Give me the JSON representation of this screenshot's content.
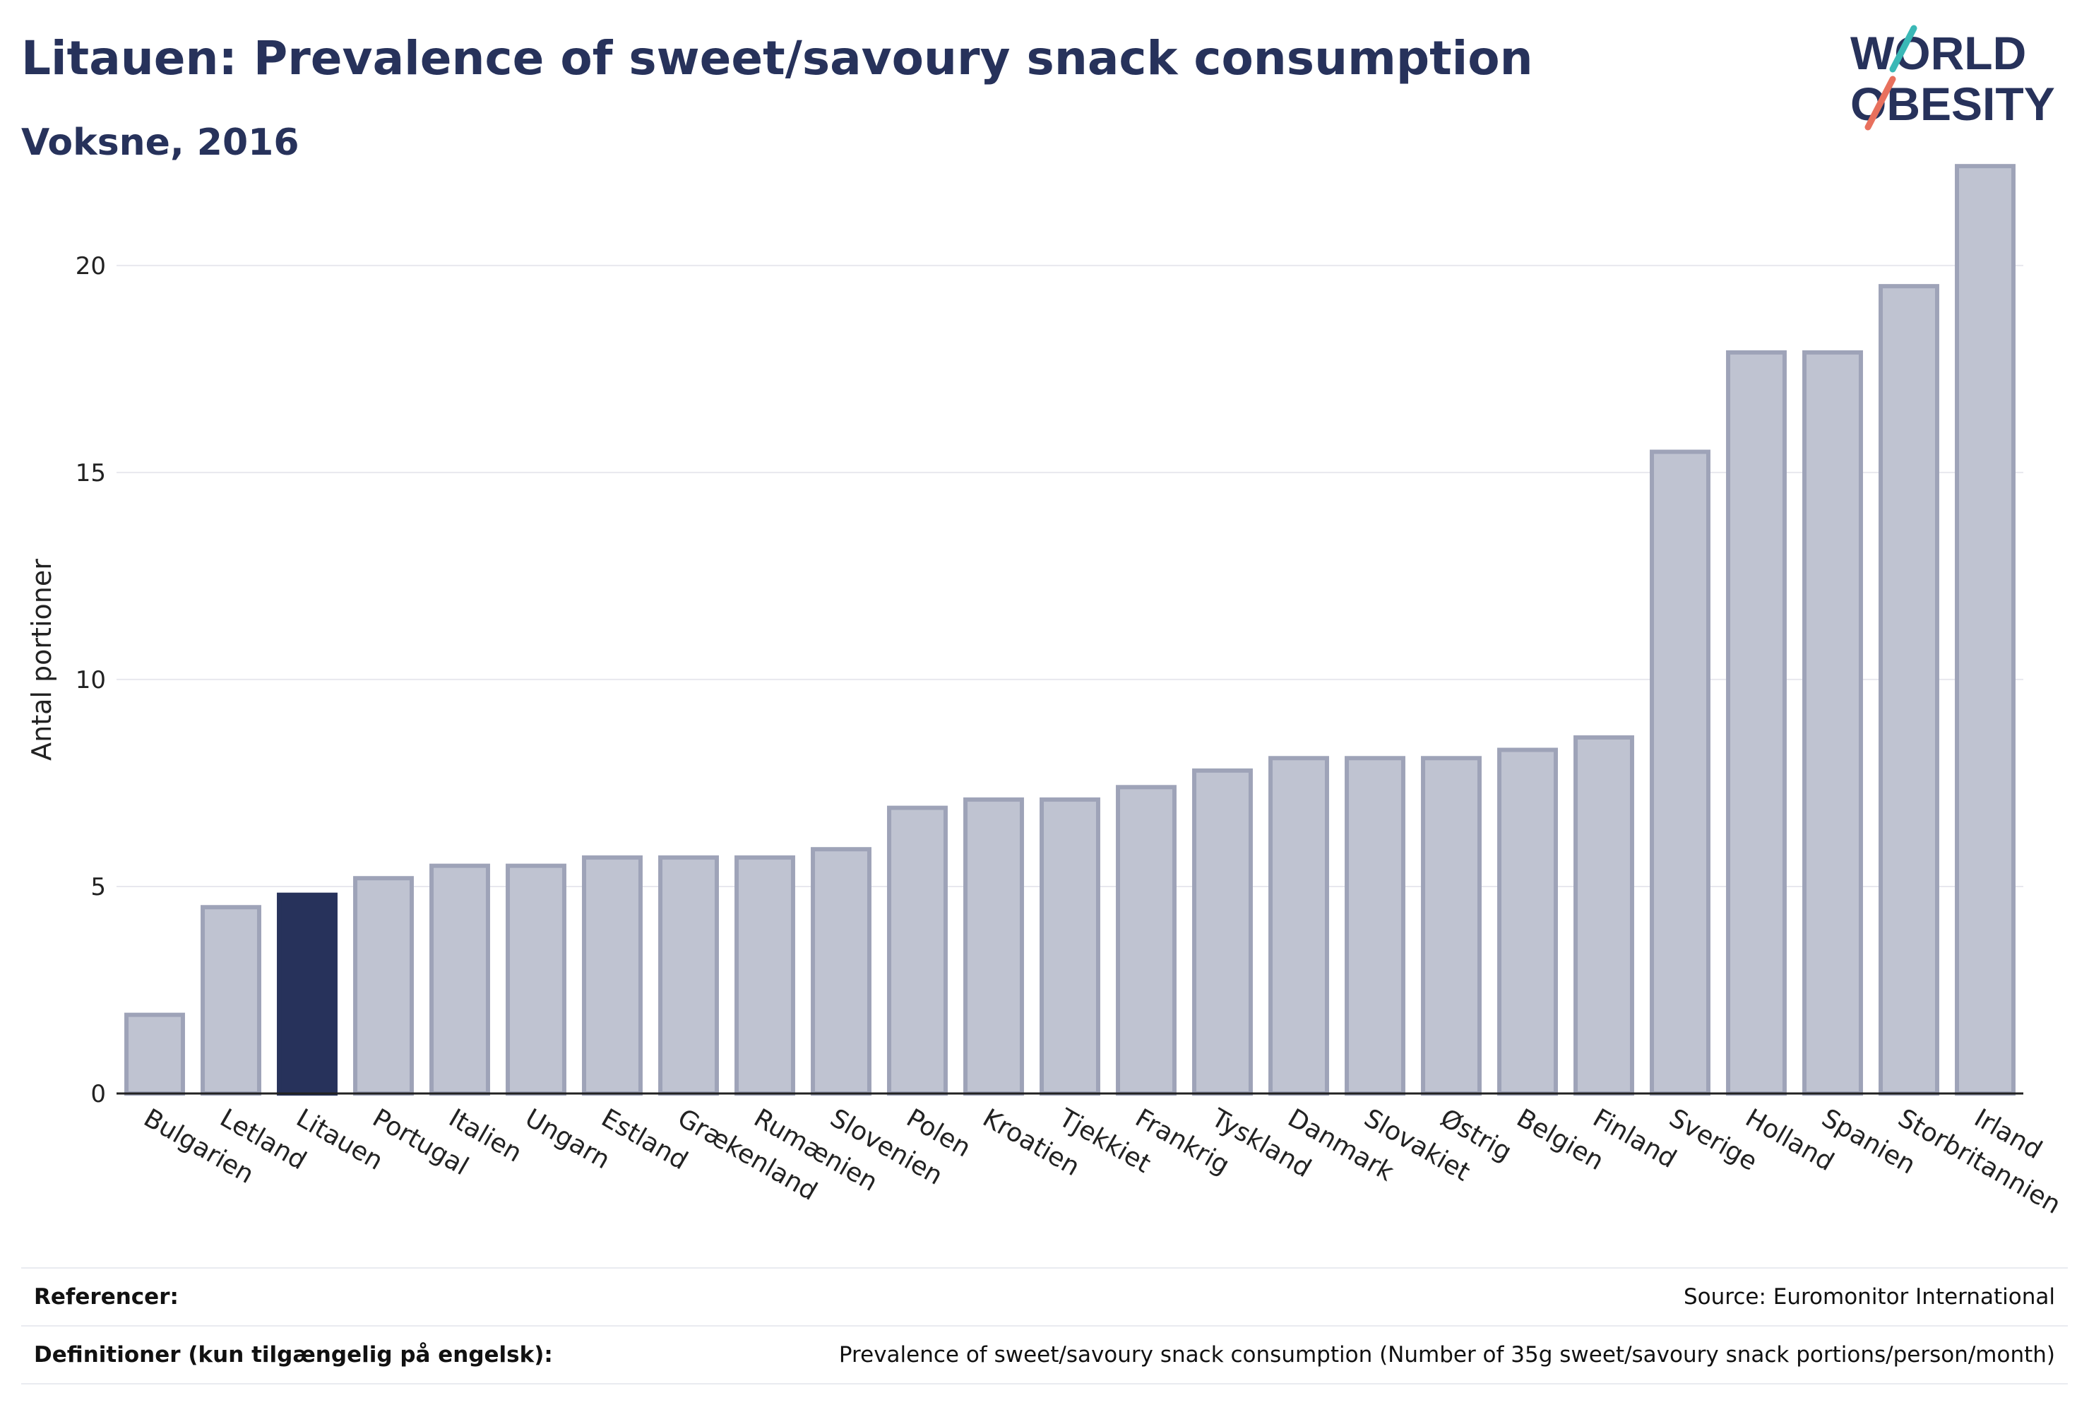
{
  "header": {
    "title": "Litauen: Prevalence of sweet/savoury snack consumption",
    "subtitle": "Voksne, 2016"
  },
  "logo": {
    "line1": "WORLD",
    "line2": "OBESITY",
    "colors": {
      "text": "#27325b",
      "slash_top": "#3ab8b6",
      "slash_bottom": "#e8705d"
    }
  },
  "colors": {
    "highlight": "#27325b",
    "bar_fill": "#bfc3d1",
    "bar_stroke": "#9ea3b8",
    "grid": "#e8e8ee",
    "axis": "#222222"
  },
  "chart_data": {
    "type": "bar",
    "ylabel": "Antal portioner",
    "xlabel": "",
    "ylim": [
      0,
      23
    ],
    "yticks": [
      0,
      5,
      10,
      15,
      20
    ],
    "grid": true,
    "highlight": "Litauen",
    "categories": [
      "Bulgarien",
      "Letland",
      "Litauen",
      "Portugal",
      "Italien",
      "Ungarn",
      "Estland",
      "Grækenland",
      "Rumænien",
      "Slovenien",
      "Polen",
      "Kroatien",
      "Tjekkiet",
      "Frankrig",
      "Tyskland",
      "Danmark",
      "Slovakiet",
      "Østrig",
      "Belgien",
      "Finland",
      "Sverige",
      "Holland",
      "Spanien",
      "Storbritannien",
      "Irland"
    ],
    "values": [
      1.9,
      4.5,
      4.8,
      5.2,
      5.5,
      5.5,
      5.7,
      5.7,
      5.7,
      5.9,
      6.9,
      7.1,
      7.1,
      7.4,
      7.8,
      8.1,
      8.1,
      8.1,
      8.3,
      8.6,
      15.5,
      17.9,
      17.9,
      19.5,
      22.4
    ]
  },
  "footer": {
    "references_label": "Referencer:",
    "references_value": "Source: Euromonitor International",
    "definitions_label": "Definitioner (kun tilgængelig på engelsk):",
    "definitions_value": "Prevalence of sweet/savoury snack consumption (Number of 35g sweet/savoury snack portions/person/month)"
  }
}
